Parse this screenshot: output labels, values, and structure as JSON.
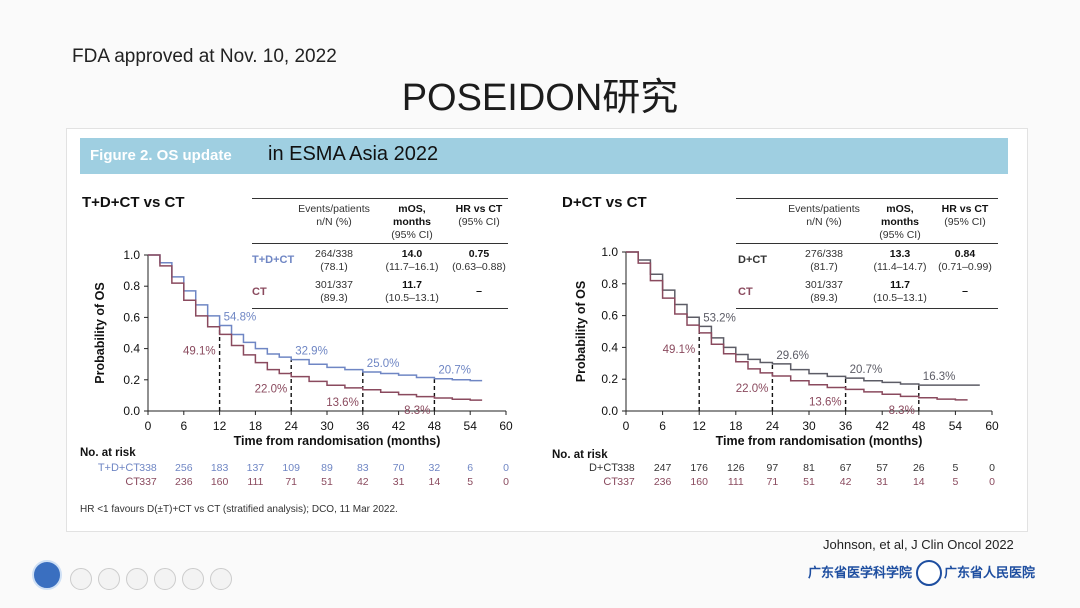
{
  "header": {
    "fda_note": "FDA approved at Nov. 10, 2022",
    "title": "POSEIDON研究"
  },
  "banner": {
    "figure_label": "Figure 2. OS update",
    "extra": "in ESMA Asia 2022"
  },
  "colors": {
    "td_ct": "#6f86c4",
    "d_ct": "#5c5c66",
    "ct": "#8a4a5e",
    "banner": "#9fcfe1"
  },
  "table_headers": {
    "events": "Events/patients",
    "events_sub": "n/N (%)",
    "mos": "mOS,",
    "mos_sub": "months",
    "mos_ci": "(95% CI)",
    "hr": "HR vs CT",
    "hr_ci": "(95% CI)"
  },
  "footnote": "HR <1 favours D(±T)+CT vs CT (stratified analysis); DCO, 11 Mar 2022.",
  "citation": "Johnson, et al, J Clin Oncol 2022",
  "institutions": [
    "广东省医学科学院",
    "广东省人民医院"
  ],
  "chart_data": [
    {
      "type": "line",
      "title": "T+D+CT vs CT",
      "xlabel": "Time from randomisation (months)",
      "ylabel": "Probability of OS",
      "xlim": [
        0,
        60
      ],
      "ylim": [
        0,
        1
      ],
      "xticks": [
        "0",
        "6",
        "12",
        "18",
        "24",
        "30",
        "36",
        "42",
        "48",
        "54",
        "60"
      ],
      "yticks": [
        "0.0",
        "0.2",
        "0.4",
        "0.6",
        "0.8",
        "1.0"
      ],
      "series": [
        {
          "name": "T+D+CT",
          "color": "#6f86c4",
          "x": [
            0,
            2,
            4,
            6,
            8,
            10,
            12,
            14,
            16,
            18,
            20,
            22,
            24,
            27,
            30,
            33,
            36,
            39,
            42,
            45,
            48,
            51,
            54,
            56
          ],
          "y": [
            1.0,
            0.95,
            0.86,
            0.77,
            0.68,
            0.61,
            0.548,
            0.49,
            0.44,
            0.4,
            0.365,
            0.345,
            0.329,
            0.3,
            0.28,
            0.265,
            0.25,
            0.24,
            0.23,
            0.215,
            0.207,
            0.2,
            0.195,
            0.195
          ],
          "events": "264/338",
          "events_pct": "(78.1)",
          "mos": "14.0",
          "mos_ci": "(11.7–16.1)",
          "hr": "0.75",
          "hr_ci": "(0.63–0.88)"
        },
        {
          "name": "CT",
          "color": "#8a4a5e",
          "x": [
            0,
            2,
            4,
            6,
            8,
            10,
            12,
            14,
            16,
            18,
            20,
            22,
            24,
            27,
            30,
            33,
            36,
            39,
            42,
            45,
            48,
            51,
            54,
            56
          ],
          "y": [
            1.0,
            0.93,
            0.82,
            0.71,
            0.61,
            0.54,
            0.491,
            0.42,
            0.36,
            0.31,
            0.265,
            0.24,
            0.22,
            0.19,
            0.165,
            0.148,
            0.136,
            0.12,
            0.105,
            0.092,
            0.083,
            0.075,
            0.07,
            0.07
          ],
          "events": "301/337",
          "events_pct": "(89.3)",
          "mos": "11.7",
          "mos_ci": "(10.5–13.1)",
          "hr": "–",
          "hr_ci": ""
        }
      ],
      "annotations": [
        {
          "x": 12,
          "y": 0.548,
          "label": "54.8%",
          "series": "T+D+CT"
        },
        {
          "x": 24,
          "y": 0.329,
          "label": "32.9%",
          "series": "T+D+CT"
        },
        {
          "x": 36,
          "y": 0.25,
          "label": "25.0%",
          "series": "T+D+CT"
        },
        {
          "x": 48,
          "y": 0.207,
          "label": "20.7%",
          "series": "T+D+CT"
        },
        {
          "x": 12,
          "y": 0.491,
          "label": "49.1%",
          "series": "CT"
        },
        {
          "x": 24,
          "y": 0.22,
          "label": "22.0%",
          "series": "CT"
        },
        {
          "x": 36,
          "y": 0.136,
          "label": "13.6%",
          "series": "CT"
        },
        {
          "x": 48,
          "y": 0.083,
          "label": "8.3%",
          "series": "CT"
        }
      ],
      "risk_title": "No. at risk",
      "at_risk": [
        {
          "label": "T+D+CT",
          "color": "#6f86c4",
          "values": [
            "338",
            "256",
            "183",
            "137",
            "109",
            "89",
            "83",
            "70",
            "32",
            "6",
            "0"
          ]
        },
        {
          "label": "CT",
          "color": "#8a4a5e",
          "values": [
            "337",
            "236",
            "160",
            "111",
            "71",
            "51",
            "42",
            "31",
            "14",
            "5",
            "0"
          ]
        }
      ]
    },
    {
      "type": "line",
      "title": "D+CT vs CT",
      "xlabel": "Time from randomisation (months)",
      "ylabel": "Probability of OS",
      "xlim": [
        0,
        60
      ],
      "ylim": [
        0,
        1
      ],
      "xticks": [
        "0",
        "6",
        "12",
        "18",
        "24",
        "30",
        "36",
        "42",
        "48",
        "54",
        "60"
      ],
      "yticks": [
        "0.0",
        "0.2",
        "0.4",
        "0.6",
        "0.8",
        "1.0"
      ],
      "series": [
        {
          "name": "D+CT",
          "color": "#5c5c66",
          "x": [
            0,
            2,
            4,
            6,
            8,
            10,
            12,
            14,
            16,
            18,
            20,
            22,
            24,
            27,
            30,
            33,
            36,
            39,
            42,
            45,
            48,
            51,
            54,
            58
          ],
          "y": [
            1.0,
            0.95,
            0.86,
            0.76,
            0.67,
            0.59,
            0.532,
            0.46,
            0.4,
            0.355,
            0.325,
            0.305,
            0.296,
            0.26,
            0.235,
            0.218,
            0.207,
            0.19,
            0.18,
            0.17,
            0.163,
            0.163,
            0.163,
            0.163
          ],
          "events": "276/338",
          "events_pct": "(81.7)",
          "mos": "13.3",
          "mos_ci": "(11.4–14.7)",
          "hr": "0.84",
          "hr_ci": "(0.71–0.99)"
        },
        {
          "name": "CT",
          "color": "#8a4a5e",
          "x": [
            0,
            2,
            4,
            6,
            8,
            10,
            12,
            14,
            16,
            18,
            20,
            22,
            24,
            27,
            30,
            33,
            36,
            39,
            42,
            45,
            48,
            51,
            54,
            56
          ],
          "y": [
            1.0,
            0.93,
            0.82,
            0.71,
            0.61,
            0.54,
            0.491,
            0.42,
            0.36,
            0.31,
            0.265,
            0.24,
            0.22,
            0.19,
            0.165,
            0.148,
            0.136,
            0.12,
            0.105,
            0.092,
            0.083,
            0.075,
            0.07,
            0.07
          ],
          "events": "301/337",
          "events_pct": "(89.3)",
          "mos": "11.7",
          "mos_ci": "(10.5–13.1)",
          "hr": "–",
          "hr_ci": ""
        }
      ],
      "annotations": [
        {
          "x": 12,
          "y": 0.532,
          "label": "53.2%",
          "series": "D+CT"
        },
        {
          "x": 24,
          "y": 0.296,
          "label": "29.6%",
          "series": "D+CT"
        },
        {
          "x": 36,
          "y": 0.207,
          "label": "20.7%",
          "series": "D+CT"
        },
        {
          "x": 48,
          "y": 0.163,
          "label": "16.3%",
          "series": "D+CT"
        },
        {
          "x": 12,
          "y": 0.491,
          "label": "49.1%",
          "series": "CT"
        },
        {
          "x": 24,
          "y": 0.22,
          "label": "22.0%",
          "series": "CT"
        },
        {
          "x": 36,
          "y": 0.136,
          "label": "13.6%",
          "series": "CT"
        },
        {
          "x": 48,
          "y": 0.083,
          "label": "8.3%",
          "series": "CT"
        }
      ],
      "risk_title": "No. at risk",
      "at_risk": [
        {
          "label": "D+CT",
          "color": "#333333",
          "values": [
            "338",
            "247",
            "176",
            "126",
            "97",
            "81",
            "67",
            "57",
            "26",
            "5",
            "0"
          ]
        },
        {
          "label": "CT",
          "color": "#8a4a5e",
          "values": [
            "337",
            "236",
            "160",
            "111",
            "71",
            "51",
            "42",
            "31",
            "14",
            "5",
            "0"
          ]
        }
      ]
    }
  ]
}
